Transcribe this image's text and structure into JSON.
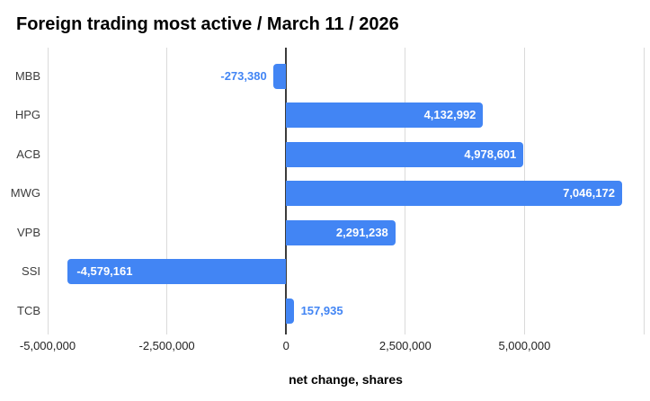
{
  "title": "Foreign trading most active / March 11 / 2026",
  "chart_data": {
    "type": "bar",
    "orientation": "horizontal",
    "title": "Foreign trading most active / March 11 / 2026",
    "xlabel": "net change, shares",
    "ylabel": "",
    "categories": [
      "MBB",
      "HPG",
      "ACB",
      "MWG",
      "VPB",
      "SSI",
      "TCB"
    ],
    "values": [
      -273380,
      4132992,
      4978601,
      7046172,
      2291238,
      -4579161,
      157935
    ],
    "value_labels": [
      "-273,380",
      "4,132,992",
      "4,978,601",
      "7,046,172",
      "2,291,238",
      "-4,579,161",
      "157,935"
    ],
    "xlim": [
      -5000000,
      7500000
    ],
    "x_ticks": [
      {
        "value": -5000000,
        "label": "-5,000,000"
      },
      {
        "value": -2500000,
        "label": "-2,500,000"
      },
      {
        "value": 0,
        "label": "0"
      },
      {
        "value": 2500000,
        "label": "2,500,000"
      },
      {
        "value": 5000000,
        "label": "5,000,000"
      }
    ],
    "gridline_values": [
      -5000000,
      -2500000,
      0,
      2500000,
      5000000,
      7500000
    ],
    "grid": true,
    "legend_position": "none",
    "colors": {
      "bar": "#4285F4",
      "label_inside": "#ffffff",
      "label_outside": "#4285F4",
      "gridline": "#dadada",
      "zero_line": "#3b3b3b",
      "category_text": "#3c3c3c",
      "tick_text": "#222222",
      "title_text": "#000000"
    }
  }
}
